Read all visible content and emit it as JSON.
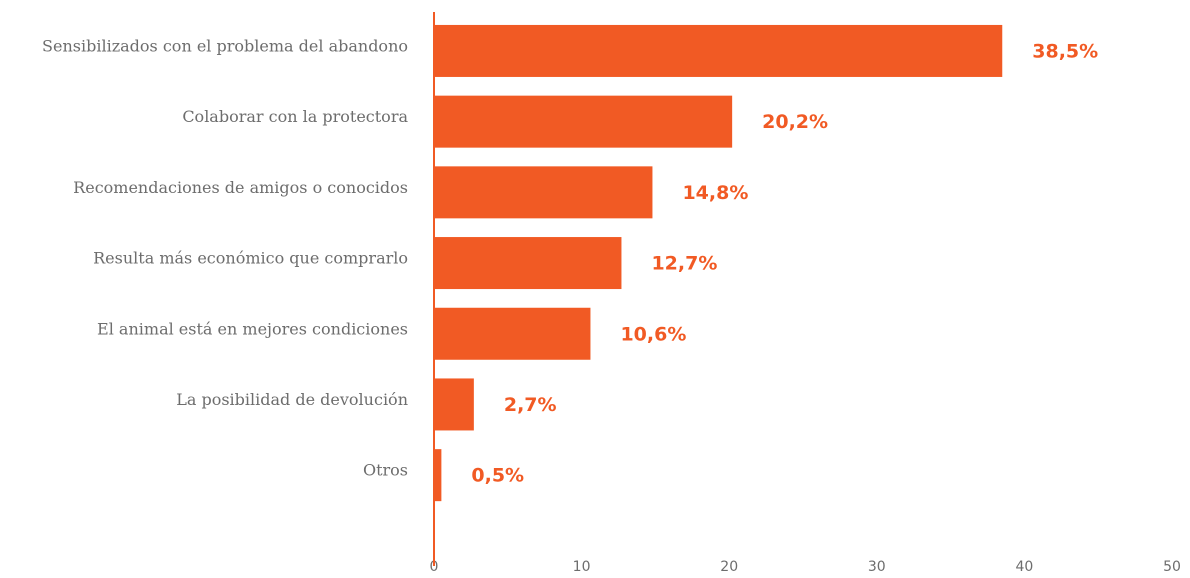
{
  "chart_data": {
    "type": "barh",
    "categories": [
      "Sensibilizados con el problema del abandono",
      "Colaborar con la protectora",
      "Recomendaciones de amigos o conocidos",
      "Resulta más económico que comprarlo",
      "El animal está en mejores condiciones",
      "La posibilidad de devolución",
      "Otros"
    ],
    "values": [
      38.5,
      20.2,
      14.8,
      12.7,
      10.6,
      2.7,
      0.5
    ],
    "value_labels": [
      "38,5%",
      "20,2%",
      "14,8%",
      "12,7%",
      "10,6%",
      "2,7%",
      "0,5%"
    ],
    "color": "#f15a24",
    "xlim": [
      0,
      50
    ],
    "xticks": [
      0,
      10,
      20,
      30,
      40,
      50
    ],
    "grid": false
  }
}
